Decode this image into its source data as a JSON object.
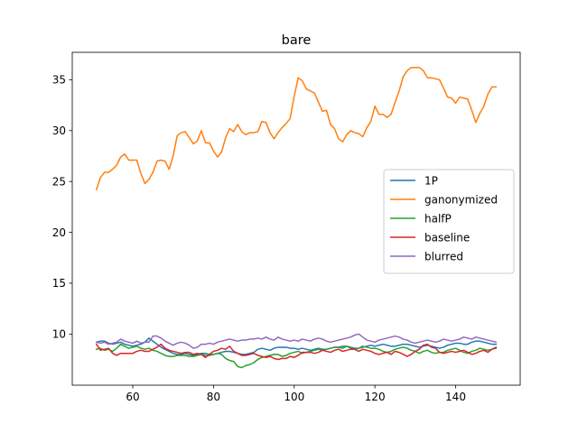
{
  "chart_data": {
    "type": "line",
    "title": "bare",
    "xlabel": "",
    "ylabel": "",
    "xlim": [
      45,
      156
    ],
    "ylim": [
      4.97,
      37.7
    ],
    "xticks": [
      60,
      80,
      100,
      120,
      140
    ],
    "yticks": [
      10,
      15,
      20,
      25,
      30,
      35
    ],
    "legend_position": "center-right",
    "x": [
      51,
      52,
      53,
      54,
      55,
      56,
      57,
      58,
      59,
      60,
      61,
      62,
      63,
      64,
      65,
      66,
      67,
      68,
      69,
      70,
      71,
      72,
      73,
      74,
      75,
      76,
      77,
      78,
      79,
      80,
      81,
      82,
      83,
      84,
      85,
      86,
      87,
      88,
      89,
      90,
      91,
      92,
      93,
      94,
      95,
      96,
      97,
      98,
      99,
      100,
      101,
      102,
      103,
      104,
      105,
      106,
      107,
      108,
      109,
      110,
      111,
      112,
      113,
      114,
      115,
      116,
      117,
      118,
      119,
      120,
      121,
      122,
      123,
      124,
      125,
      126,
      127,
      128,
      129,
      130,
      131,
      132,
      133,
      134,
      135,
      136,
      137,
      138,
      139,
      140,
      141,
      142,
      143,
      144,
      145,
      146,
      147,
      148,
      149,
      150
    ],
    "series": [
      {
        "name": "1P",
        "color": "#1f77b4",
        "values": [
          9.2,
          9.3,
          9.3,
          9.1,
          9.0,
          9.1,
          9.2,
          9.0,
          8.9,
          8.8,
          8.9,
          9.0,
          9.2,
          9.6,
          9.3,
          9.0,
          8.7,
          8.5,
          8.3,
          8.1,
          8.0,
          8.0,
          8.1,
          8.0,
          7.9,
          8.0,
          8.1,
          8.1,
          8.0,
          8.0,
          8.1,
          8.2,
          8.3,
          8.3,
          8.2,
          8.1,
          8.0,
          8.0,
          8.1,
          8.2,
          8.5,
          8.6,
          8.5,
          8.4,
          8.6,
          8.7,
          8.7,
          8.7,
          8.6,
          8.6,
          8.5,
          8.6,
          8.5,
          8.4,
          8.5,
          8.6,
          8.5,
          8.5,
          8.6,
          8.7,
          8.7,
          8.8,
          8.8,
          8.7,
          8.6,
          8.6,
          8.7,
          8.8,
          8.9,
          8.8,
          8.9,
          9.0,
          8.9,
          8.8,
          8.8,
          8.9,
          9.0,
          9.0,
          8.9,
          8.8,
          8.7,
          8.8,
          8.9,
          8.8,
          8.7,
          8.6,
          8.7,
          8.9,
          9.0,
          9.1,
          9.1,
          9.0,
          9.0,
          9.2,
          9.3,
          9.3,
          9.2,
          9.1,
          9.0,
          9.0
        ]
      },
      {
        "name": "ganonymized",
        "color": "#ff7f0e",
        "values": [
          24.2,
          25.4,
          25.9,
          25.9,
          26.2,
          26.6,
          27.4,
          27.7,
          27.1,
          27.1,
          27.1,
          25.8,
          24.8,
          25.2,
          25.9,
          27.0,
          27.1,
          27.0,
          26.2,
          27.5,
          29.5,
          29.8,
          29.9,
          29.3,
          28.7,
          29.0,
          30.0,
          28.8,
          28.8,
          28.0,
          27.4,
          27.9,
          29.3,
          30.2,
          29.9,
          30.6,
          29.9,
          29.6,
          29.8,
          29.8,
          29.9,
          30.9,
          30.8,
          29.8,
          29.2,
          29.8,
          30.3,
          30.7,
          31.2,
          33.4,
          35.2,
          34.9,
          34.1,
          33.9,
          33.7,
          32.8,
          31.9,
          32.0,
          30.6,
          30.2,
          29.2,
          28.9,
          29.6,
          30.0,
          29.8,
          29.7,
          29.4,
          30.3,
          30.9,
          32.4,
          31.6,
          31.6,
          31.3,
          31.6,
          32.8,
          33.9,
          35.3,
          35.9,
          36.2,
          36.2,
          36.2,
          35.9,
          35.2,
          35.2,
          35.1,
          35.0,
          34.2,
          33.3,
          33.2,
          32.7,
          33.3,
          33.2,
          33.1,
          32.0,
          30.8,
          31.7,
          32.4,
          33.6,
          34.3,
          34.3
        ]
      },
      {
        "name": "halfP",
        "color": "#2ca02c",
        "values": [
          8.5,
          8.6,
          8.4,
          8.5,
          8.3,
          8.6,
          9.0,
          8.8,
          8.6,
          8.7,
          8.8,
          8.6,
          8.5,
          8.6,
          8.4,
          8.3,
          8.1,
          7.9,
          7.8,
          7.8,
          7.9,
          7.9,
          7.9,
          7.8,
          7.8,
          7.9,
          8.0,
          7.9,
          7.9,
          8.0,
          8.1,
          8.0,
          7.6,
          7.4,
          7.3,
          6.8,
          6.7,
          6.9,
          7.0,
          7.2,
          7.5,
          7.7,
          7.8,
          7.9,
          8.0,
          8.0,
          7.8,
          7.9,
          8.1,
          8.2,
          8.3,
          8.1,
          8.2,
          8.3,
          8.4,
          8.5,
          8.4,
          8.5,
          8.6,
          8.7,
          8.7,
          8.6,
          8.8,
          8.6,
          8.5,
          8.6,
          8.8,
          8.7,
          8.6,
          8.6,
          8.5,
          8.3,
          8.2,
          8.3,
          8.5,
          8.6,
          8.7,
          8.6,
          8.4,
          8.3,
          8.1,
          8.3,
          8.4,
          8.2,
          8.1,
          8.2,
          8.2,
          8.4,
          8.5,
          8.6,
          8.4,
          8.2,
          8.1,
          8.3,
          8.4,
          8.6,
          8.5,
          8.4,
          8.5,
          8.6
        ]
      },
      {
        "name": "baseline",
        "color": "#d62728",
        "values": [
          9.0,
          8.4,
          8.5,
          8.6,
          8.1,
          7.9,
          8.1,
          8.1,
          8.1,
          8.1,
          8.3,
          8.4,
          8.3,
          8.3,
          8.5,
          8.7,
          9.0,
          8.6,
          8.4,
          8.3,
          8.2,
          8.1,
          8.2,
          8.2,
          8.0,
          8.1,
          8.0,
          7.7,
          8.0,
          8.3,
          8.4,
          8.6,
          8.5,
          8.8,
          8.3,
          8.1,
          7.9,
          7.9,
          8.0,
          8.1,
          7.9,
          7.8,
          7.7,
          7.8,
          7.6,
          7.5,
          7.6,
          7.6,
          7.8,
          7.7,
          7.9,
          8.2,
          8.2,
          8.2,
          8.1,
          8.2,
          8.4,
          8.3,
          8.2,
          8.4,
          8.5,
          8.3,
          8.4,
          8.5,
          8.5,
          8.3,
          8.5,
          8.4,
          8.3,
          8.1,
          8.0,
          8.1,
          8.2,
          8.0,
          8.3,
          8.2,
          8.0,
          7.8,
          8.0,
          8.3,
          8.5,
          8.9,
          9.0,
          8.7,
          8.6,
          8.2,
          8.1,
          8.2,
          8.3,
          8.2,
          8.3,
          8.4,
          8.2,
          8.0,
          8.1,
          8.3,
          8.4,
          8.2,
          8.5,
          8.7
        ]
      },
      {
        "name": "blurred",
        "color": "#9467bd",
        "values": [
          9.2,
          9.1,
          9.2,
          9.0,
          9.1,
          9.2,
          9.5,
          9.3,
          9.2,
          9.1,
          9.3,
          9.1,
          9.2,
          9.2,
          9.8,
          9.8,
          9.6,
          9.3,
          9.1,
          8.9,
          9.1,
          9.2,
          9.1,
          8.9,
          8.6,
          8.7,
          9.0,
          9.0,
          9.1,
          9.0,
          9.2,
          9.3,
          9.4,
          9.5,
          9.4,
          9.3,
          9.4,
          9.4,
          9.5,
          9.5,
          9.6,
          9.5,
          9.7,
          9.5,
          9.4,
          9.7,
          9.5,
          9.4,
          9.3,
          9.4,
          9.3,
          9.5,
          9.4,
          9.3,
          9.5,
          9.6,
          9.5,
          9.3,
          9.2,
          9.3,
          9.4,
          9.5,
          9.6,
          9.7,
          9.9,
          10.0,
          9.7,
          9.4,
          9.3,
          9.2,
          9.4,
          9.5,
          9.6,
          9.7,
          9.8,
          9.7,
          9.5,
          9.4,
          9.2,
          9.1,
          9.2,
          9.3,
          9.4,
          9.3,
          9.2,
          9.3,
          9.5,
          9.4,
          9.3,
          9.4,
          9.5,
          9.7,
          9.6,
          9.5,
          9.7,
          9.6,
          9.5,
          9.4,
          9.3,
          9.2
        ]
      }
    ]
  }
}
